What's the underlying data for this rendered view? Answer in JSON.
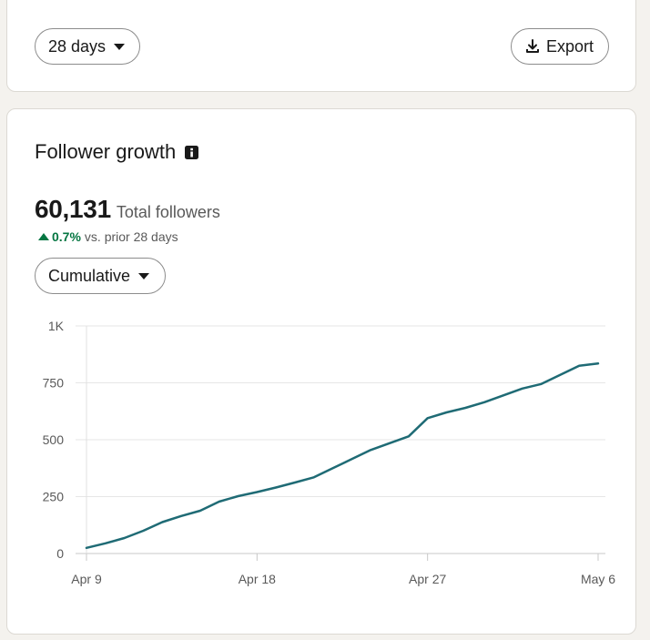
{
  "toolbar": {
    "range_label": "28 days",
    "export_label": "Export"
  },
  "card": {
    "title": "Follower growth",
    "total_value": "60,131",
    "total_label": "Total followers",
    "delta_value": "0.7%",
    "delta_label": "vs. prior 28 days",
    "mode_label": "Cumulative"
  },
  "colors": {
    "line": "#1f6b75",
    "positive": "#057642"
  },
  "chart_data": {
    "type": "line",
    "title": "",
    "xlabel": "",
    "ylabel": "",
    "ylim": [
      0,
      1000
    ],
    "y_ticks": [
      "0",
      "250",
      "500",
      "750",
      "1K"
    ],
    "y_tick_values": [
      0,
      250,
      500,
      750,
      1000
    ],
    "x_ticks": [
      "Apr 9",
      "Apr 18",
      "Apr 27",
      "May 6"
    ],
    "x_tick_values": [
      "Apr 9",
      "Apr 18",
      "Apr 27",
      "May 6"
    ],
    "grid": true,
    "series": [
      {
        "x": [
          "Apr 9",
          "Apr 10",
          "Apr 11",
          "Apr 12",
          "Apr 13",
          "Apr 14",
          "Apr 15",
          "Apr 16",
          "Apr 17",
          "Apr 18",
          "Apr 19",
          "Apr 20",
          "Apr 21",
          "Apr 22",
          "Apr 23",
          "Apr 24",
          "Apr 25",
          "Apr 26",
          "Apr 27",
          "Apr 28",
          "Apr 29",
          "Apr 30",
          "May 1",
          "May 2",
          "May 3",
          "May 4",
          "May 5",
          "May 6"
        ],
        "values": [
          25,
          45,
          68,
          100,
          138,
          165,
          188,
          228,
          252,
          270,
          290,
          312,
          335,
          375,
          415,
          455,
          485,
          515,
          595,
          620,
          640,
          665,
          695,
          725,
          745,
          785,
          825,
          835
        ]
      }
    ]
  }
}
